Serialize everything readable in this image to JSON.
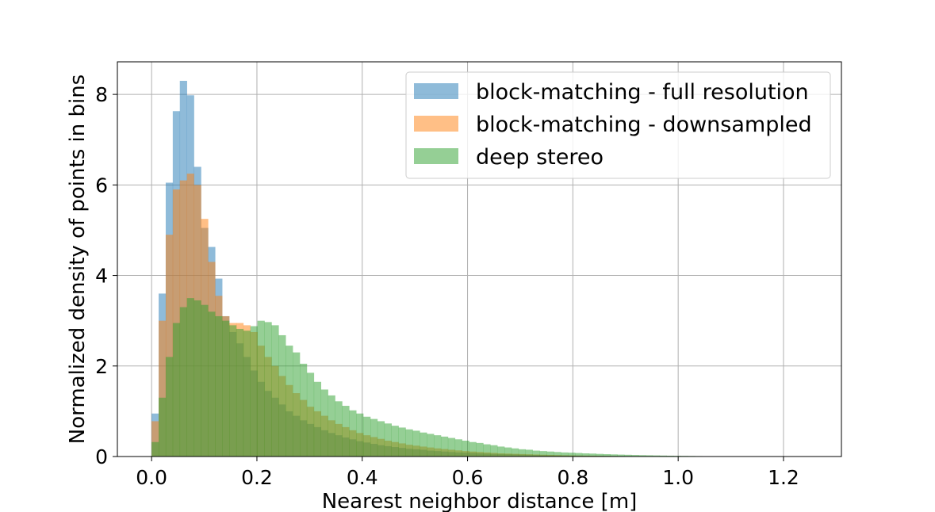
{
  "chart_data": {
    "type": "histogram",
    "title": "",
    "xlabel": "Nearest neighbor distance [m]",
    "ylabel": "Normalized density of points in bins",
    "xlim": [
      -0.065,
      1.31
    ],
    "ylim": [
      0,
      8.72
    ],
    "xticks": [
      0.0,
      0.2,
      0.4,
      0.6,
      0.8,
      1.0,
      1.2
    ],
    "yticks": [
      0,
      2,
      4,
      6,
      8
    ],
    "xtick_labels": [
      "0.0",
      "0.2",
      "0.4",
      "0.6",
      "0.8",
      "1.0",
      "1.2"
    ],
    "ytick_labels": [
      "0",
      "2",
      "4",
      "6",
      "8"
    ],
    "grid": true,
    "legend_position": "top-right",
    "bin_width": 0.0134,
    "series": [
      {
        "name": "block-matching - full resolution",
        "color": "#1f77b4",
        "alpha": 0.5,
        "bin_start": 0.0,
        "values": [
          0.95,
          3.6,
          6.05,
          7.63,
          8.3,
          7.98,
          6.4,
          5.05,
          4.63,
          3.93,
          3.1,
          2.75,
          2.5,
          2.2,
          1.9,
          1.65,
          1.45,
          1.3,
          1.15,
          1.0,
          0.9,
          0.8,
          0.72,
          0.65,
          0.58,
          0.52,
          0.47,
          0.42,
          0.38,
          0.34,
          0.31,
          0.28,
          0.25,
          0.23,
          0.21,
          0.19,
          0.17,
          0.16,
          0.15,
          0.13,
          0.12,
          0.11,
          0.1,
          0.09,
          0.085,
          0.08,
          0.072,
          0.066,
          0.06,
          0.055,
          0.05,
          0.046,
          0.042,
          0.038,
          0.035,
          0.032,
          0.029,
          0.026,
          0.024,
          0.022,
          0.02,
          0.018,
          0.016,
          0.015,
          0.014,
          0.012,
          0.011,
          0.01,
          0.009,
          0.008,
          0.007,
          0.006,
          0.005,
          0.005,
          0.004,
          0.004,
          0.003,
          0.003,
          0.002,
          0.002,
          0.002,
          0.001,
          0.001,
          0.001
        ]
      },
      {
        "name": "block-matching - downsampled",
        "color": "#ff7f0e",
        "alpha": 0.5,
        "bin_start": 0.0,
        "values": [
          0.78,
          3.0,
          4.9,
          5.9,
          6.1,
          6.25,
          6.0,
          5.25,
          4.3,
          3.55,
          3.1,
          2.95,
          2.95,
          2.9,
          2.75,
          2.45,
          2.2,
          2.0,
          1.78,
          1.58,
          1.4,
          1.25,
          1.1,
          1.0,
          0.9,
          0.8,
          0.72,
          0.65,
          0.58,
          0.52,
          0.47,
          0.43,
          0.39,
          0.35,
          0.32,
          0.29,
          0.26,
          0.24,
          0.22,
          0.2,
          0.18,
          0.165,
          0.15,
          0.135,
          0.12,
          0.11,
          0.1,
          0.09,
          0.08,
          0.07,
          0.065,
          0.06,
          0.055,
          0.05,
          0.045,
          0.04,
          0.036,
          0.032,
          0.028,
          0.025,
          0.022,
          0.02,
          0.018,
          0.016,
          0.014,
          0.012,
          0.01,
          0.009,
          0.008,
          0.007,
          0.006,
          0.005,
          0.004,
          0.004,
          0.003,
          0.003,
          0.002,
          0.002,
          0.002,
          0.001,
          0.001,
          0.001,
          0.001,
          0.001
        ]
      },
      {
        "name": "deep stereo",
        "color": "#2ca02c",
        "alpha": 0.5,
        "bin_start": 0.0,
        "values": [
          0.32,
          1.3,
          2.2,
          2.95,
          3.3,
          3.5,
          3.45,
          3.35,
          3.2,
          3.1,
          3.0,
          2.9,
          2.82,
          2.78,
          2.88,
          3.0,
          2.97,
          2.9,
          2.68,
          2.45,
          2.3,
          2.05,
          1.85,
          1.65,
          1.48,
          1.35,
          1.22,
          1.12,
          1.02,
          0.95,
          0.88,
          0.83,
          0.78,
          0.73,
          0.68,
          0.64,
          0.6,
          0.57,
          0.53,
          0.5,
          0.47,
          0.44,
          0.41,
          0.38,
          0.35,
          0.32,
          0.3,
          0.27,
          0.25,
          0.22,
          0.2,
          0.18,
          0.16,
          0.15,
          0.13,
          0.12,
          0.11,
          0.1,
          0.09,
          0.085,
          0.078,
          0.07,
          0.065,
          0.058,
          0.052,
          0.047,
          0.042,
          0.038,
          0.034,
          0.03,
          0.027,
          0.024,
          0.021,
          0.018,
          0.016,
          0.014,
          0.012,
          0.01,
          0.009,
          0.008,
          0.007,
          0.006,
          0.005,
          0.004
        ]
      }
    ]
  }
}
